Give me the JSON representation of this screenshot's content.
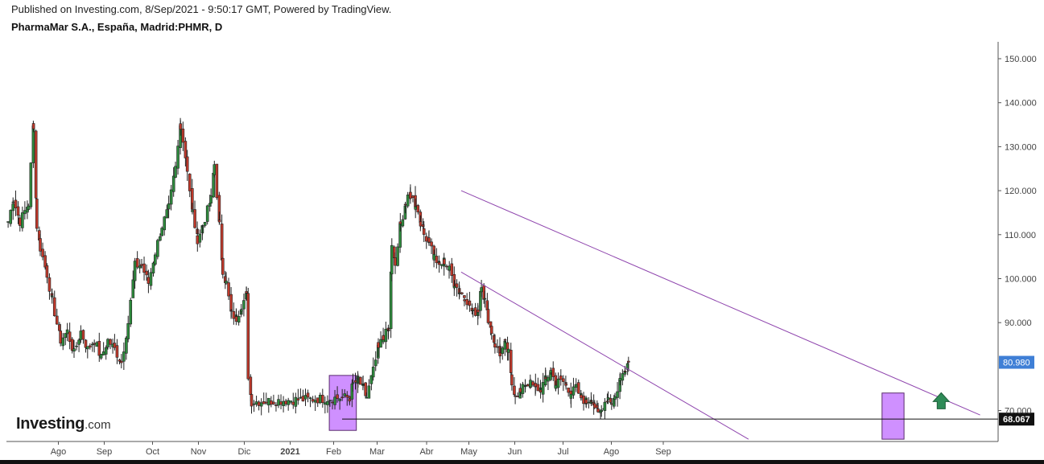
{
  "header": {
    "published": "Published on Investing.com, 8/Sep/2021 - 9:50:17 GMT, Powered by TradingView.",
    "title": "PharmaMar S.A., España, Madrid:PHMR, D"
  },
  "branding": {
    "logo_main": "Investing",
    "logo_suffix": ".com"
  },
  "chart_data": {
    "type": "candlestick",
    "ylim": [
      63,
      152
    ],
    "y_ticks": [
      {
        "label": "150.000",
        "value": 150
      },
      {
        "label": "140.000",
        "value": 140
      },
      {
        "label": "130.000",
        "value": 130
      },
      {
        "label": "120.000",
        "value": 120
      },
      {
        "label": "110.000",
        "value": 110
      },
      {
        "label": "100.000",
        "value": 100
      },
      {
        "label": "90.000",
        "value": 90
      },
      {
        "label": "70.000",
        "value": 70
      }
    ],
    "x_ticks": [
      {
        "label": "Ago",
        "day": 63,
        "bold": false
      },
      {
        "label": "Sep",
        "day": 101,
        "bold": false
      },
      {
        "label": "Oct",
        "day": 141,
        "bold": false
      },
      {
        "label": "Nov",
        "day": 179,
        "bold": false
      },
      {
        "label": "Dic",
        "day": 217,
        "bold": false
      },
      {
        "label": "2021",
        "day": 255,
        "bold": true
      },
      {
        "label": "Feb",
        "day": 291,
        "bold": false
      },
      {
        "label": "Mar",
        "day": 327,
        "bold": false
      },
      {
        "label": "Abr",
        "day": 368,
        "bold": false
      },
      {
        "label": "May",
        "day": 403,
        "bold": false
      },
      {
        "label": "Jun",
        "day": 441,
        "bold": false
      },
      {
        "label": "Jul",
        "day": 481,
        "bold": false
      },
      {
        "label": "Ago",
        "day": 521,
        "bold": false
      },
      {
        "label": "Sep",
        "day": 564,
        "bold": false
      }
    ],
    "x_range": [
      20,
      596
    ],
    "anchors": [
      [
        21,
        113
      ],
      [
        24,
        118
      ],
      [
        28,
        113
      ],
      [
        33,
        117
      ],
      [
        36,
        135
      ],
      [
        38,
        112
      ],
      [
        40,
        107
      ],
      [
        44,
        101
      ],
      [
        47,
        95
      ],
      [
        52,
        86
      ],
      [
        56,
        88
      ],
      [
        60,
        83
      ],
      [
        64,
        88
      ],
      [
        68,
        84
      ],
      [
        72,
        86
      ],
      [
        76,
        82
      ],
      [
        80,
        86
      ],
      [
        84,
        84
      ],
      [
        88,
        81
      ],
      [
        92,
        90
      ],
      [
        96,
        103
      ],
      [
        100,
        103
      ],
      [
        104,
        99
      ],
      [
        108,
        106
      ],
      [
        112,
        112
      ],
      [
        116,
        116
      ],
      [
        120,
        125
      ],
      [
        123,
        135
      ],
      [
        127,
        125
      ],
      [
        130,
        115
      ],
      [
        133,
        109
      ],
      [
        136,
        112
      ],
      [
        141,
        118
      ],
      [
        143,
        126
      ],
      [
        146,
        112
      ],
      [
        148,
        102
      ],
      [
        150,
        99
      ],
      [
        153,
        92
      ],
      [
        156,
        91
      ],
      [
        159,
        94
      ],
      [
        162,
        96
      ],
      [
        163,
        78
      ],
      [
        165,
        72
      ],
      [
        168,
        73
      ],
      [
        170,
        76
      ],
      [
        173,
        77
      ],
      [
        176,
        75
      ],
      [
        178,
        73
      ],
      [
        182,
        79
      ],
      [
        185,
        84
      ],
      [
        188,
        87
      ],
      [
        191,
        88
      ],
      [
        193,
        107
      ],
      [
        195,
        103
      ],
      [
        198,
        112
      ],
      [
        201,
        117
      ],
      [
        204,
        119
      ],
      [
        207,
        117
      ],
      [
        210,
        113
      ],
      [
        212,
        110
      ],
      [
        215,
        109
      ],
      [
        218,
        105
      ],
      [
        221,
        103
      ],
      [
        224,
        104
      ],
      [
        227,
        102
      ],
      [
        230,
        99
      ],
      [
        233,
        97
      ],
      [
        236,
        96
      ],
      [
        239,
        94
      ],
      [
        241,
        92
      ],
      [
        244,
        93
      ],
      [
        246,
        99
      ],
      [
        248,
        95
      ],
      [
        250,
        91
      ],
      [
        252,
        88
      ],
      [
        254,
        85
      ],
      [
        257,
        83
      ],
      [
        260,
        85
      ],
      [
        262,
        83
      ],
      [
        264,
        76
      ],
      [
        266,
        74
      ],
      [
        269,
        74
      ],
      [
        272,
        76
      ],
      [
        275,
        76
      ],
      [
        278,
        75
      ],
      [
        281,
        75
      ],
      [
        284,
        77
      ],
      [
        287,
        79
      ],
      [
        290,
        76
      ],
      [
        293,
        77
      ],
      [
        296,
        76
      ],
      [
        299,
        74
      ],
      [
        302,
        75
      ],
      [
        305,
        73
      ],
      [
        308,
        72
      ],
      [
        311,
        73
      ],
      [
        313,
        71
      ],
      [
        315,
        69
      ],
      [
        317,
        70
      ],
      [
        319,
        72
      ],
      [
        321,
        73
      ],
      [
        323,
        72
      ],
      [
        325,
        73
      ],
      [
        328,
        77
      ],
      [
        331,
        80
      ],
      [
        333,
        81
      ]
    ],
    "shift_day": 166,
    "shift_offset": -55,
    "annotations": {
      "horizontal_line": 68.067,
      "last_price_label": "80.980",
      "last_price": 80.98,
      "support_label": "68.067",
      "channel_upper": [
        [
          289,
          120
        ],
        [
          596,
          69
        ]
      ],
      "channel_lower": [
        [
          289,
          101.5
        ],
        [
          459,
          63.5
        ]
      ],
      "boxes": [
        {
          "day_from": 211,
          "day_to": 227,
          "y_from": 65.5,
          "y_to": 78
        },
        {
          "day_from": 538,
          "day_to": 551,
          "y_from": 63.5,
          "y_to": 74
        }
      ],
      "arrow_day": 573,
      "arrow_price": 71.5
    }
  }
}
